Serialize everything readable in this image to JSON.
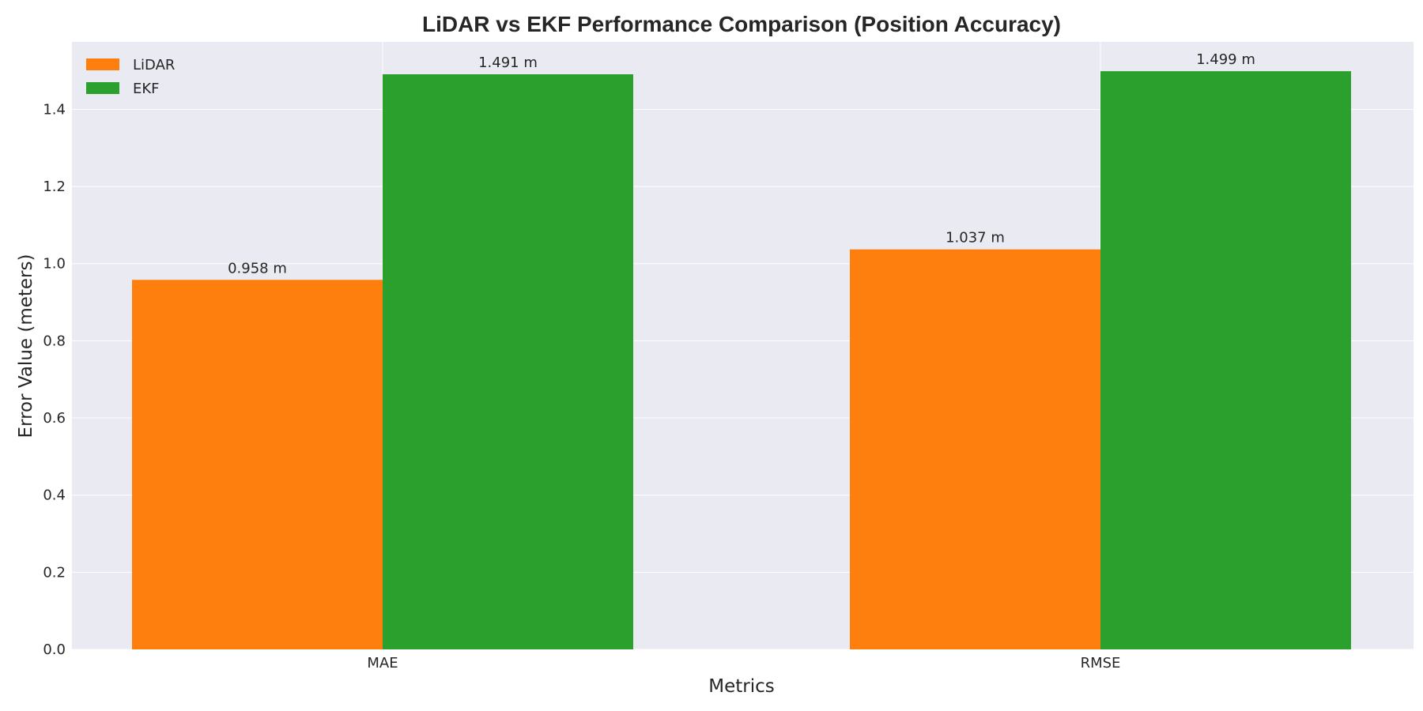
{
  "chart_data": {
    "type": "bar",
    "title": "LiDAR vs EKF Performance Comparison (Position Accuracy)",
    "xlabel": "Metrics",
    "ylabel": "Error Value (meters)",
    "categories": [
      "MAE",
      "RMSE"
    ],
    "series": [
      {
        "name": "LiDAR",
        "values": [
          0.958,
          1.037
        ],
        "labels": [
          "0.958 m",
          "1.037 m"
        ],
        "color": "#ff7f0e"
      },
      {
        "name": "EKF",
        "values": [
          1.491,
          1.499
        ],
        "labels": [
          "1.491 m",
          "1.499 m"
        ],
        "color": "#2ca02c"
      }
    ],
    "yticks": [
      0.0,
      0.2,
      0.4,
      0.6,
      0.8,
      1.0,
      1.2,
      1.4
    ],
    "ytick_labels": [
      "0.0",
      "0.2",
      "0.4",
      "0.6",
      "0.8",
      "1.0",
      "1.2",
      "1.4"
    ],
    "ylim": [
      0,
      1.575
    ],
    "grid": true,
    "legend_position": "top-left",
    "background_color": "#eaeaf2"
  }
}
